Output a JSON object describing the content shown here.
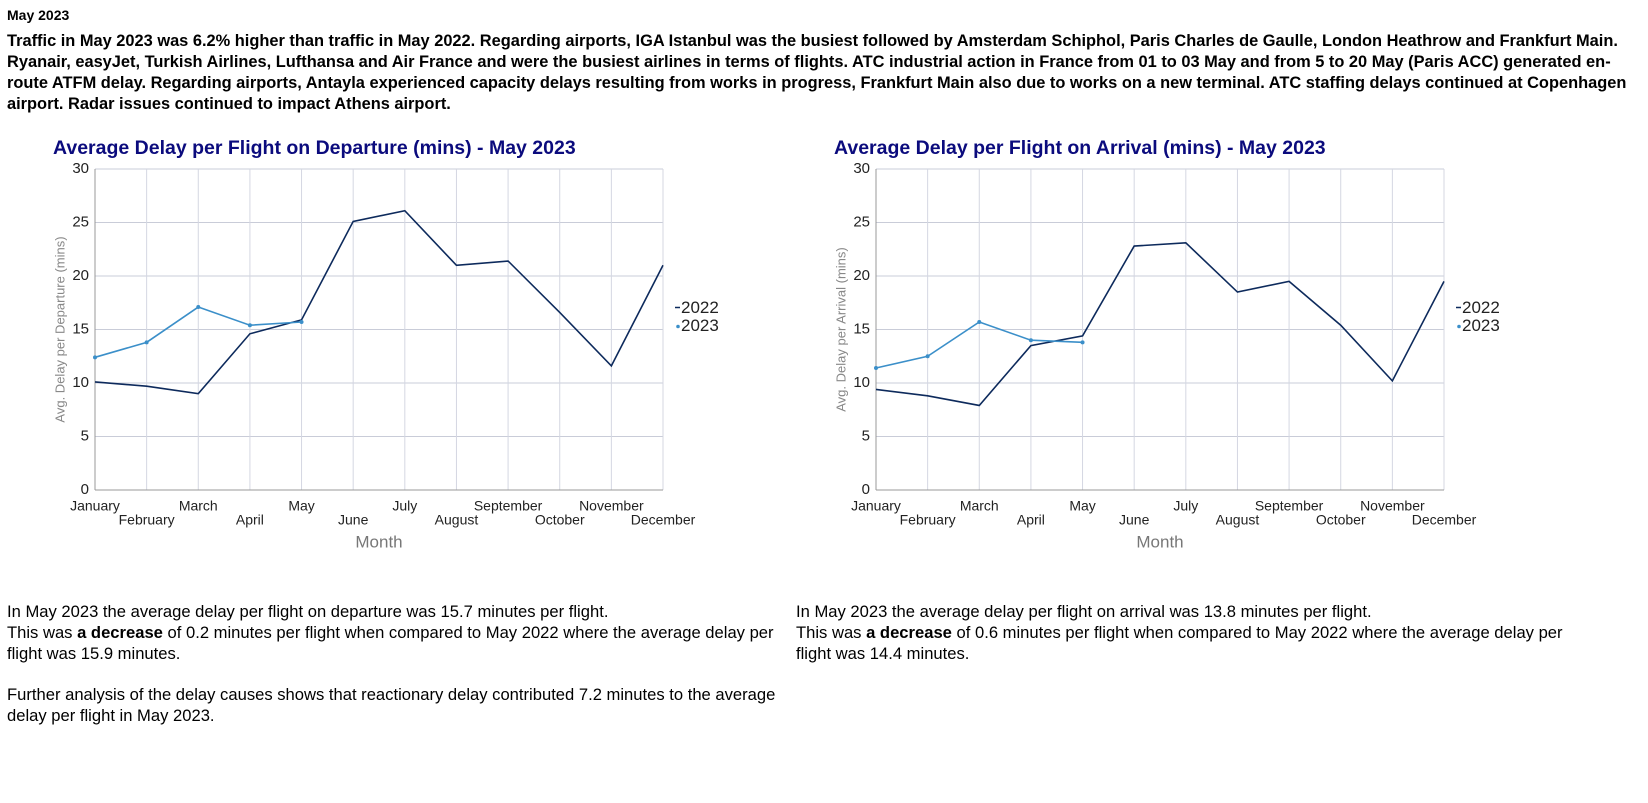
{
  "header": {
    "title": "May 2023",
    "summary": "Traffic in May 2023 was 6.2% higher than traffic in May 2022. Regarding airports, IGA Istanbul was the busiest followed by Amsterdam Schiphol, Paris Charles de Gaulle, London Heathrow and Frankfurt Main. Ryanair, easyJet, Turkish Airlines, Lufthansa and Air France and were the busiest airlines in terms of flights. ATC industrial action in France from 01 to 03 May and from 5 to 20 May (Paris ACC) generated en-route ATFM delay. Regarding airports, Antayla experienced capacity delays resulting from works in progress, Frankfurt Main also due to works on a new terminal. ATC staffing delays continued at Copenhagen airport. Radar issues continued to impact Athens airport."
  },
  "chart_data": [
    {
      "type": "line",
      "title": "Average Delay per Flight on Departure (mins) - May 2023",
      "x_label": "Month",
      "y_label": "Avg. Delay per Departure (mins)",
      "categories": [
        "January",
        "February",
        "March",
        "April",
        "May",
        "June",
        "July",
        "August",
        "September",
        "October",
        "November",
        "December"
      ],
      "series": [
        {
          "name": "2022",
          "color": "#0d2a5c",
          "values": [
            10.1,
            9.7,
            9.0,
            14.6,
            15.9,
            25.1,
            26.1,
            21.0,
            21.4,
            16.6,
            11.6,
            21.0
          ]
        },
        {
          "name": "2023",
          "color": "#3b8fc9",
          "values": [
            12.4,
            13.8,
            17.1,
            15.4,
            15.7,
            null,
            null,
            null,
            null,
            null,
            null,
            null
          ]
        }
      ],
      "ylim": [
        0,
        30
      ],
      "yticks": [
        0,
        5,
        10,
        15,
        20,
        25,
        30
      ],
      "grid": true,
      "legend": "right"
    },
    {
      "type": "line",
      "title": "Average Delay per Flight on Arrival (mins) - May 2023",
      "x_label": "Month",
      "y_label": "Avg. Delay per Arrival (mins)",
      "categories": [
        "January",
        "February",
        "March",
        "April",
        "May",
        "June",
        "July",
        "August",
        "September",
        "October",
        "November",
        "December"
      ],
      "series": [
        {
          "name": "2022",
          "color": "#0d2a5c",
          "values": [
            9.4,
            8.8,
            7.9,
            13.5,
            14.4,
            22.8,
            23.1,
            18.5,
            19.5,
            15.4,
            10.2,
            19.5
          ]
        },
        {
          "name": "2023",
          "color": "#3b8fc9",
          "values": [
            11.4,
            12.5,
            15.7,
            14.0,
            13.8,
            null,
            null,
            null,
            null,
            null,
            null,
            null
          ]
        }
      ],
      "ylim": [
        0,
        30
      ],
      "yticks": [
        0,
        5,
        10,
        15,
        20,
        25,
        30
      ],
      "grid": true,
      "legend": "right"
    }
  ],
  "notes": [
    {
      "line1": "In May 2023 the average delay per flight on departure was 15.7 minutes per flight.",
      "line2": [
        "This was",
        "a decrease",
        "of 0.2 minutes per flight when compared to May 2022 where the average delay per flight was 15.9 minutes."
      ],
      "further": "Further analysis of the delay causes shows that reactionary delay contributed 7.2 minutes to the average delay per flight in May 2023."
    },
    {
      "line1": "In May 2023 the average delay per flight on arrival was 13.8 minutes per flight.",
      "line2": [
        "This was",
        "a decrease",
        "of 0.6 minutes per flight when compared to May 2022 where the average delay per flight was 14.4 minutes."
      ]
    }
  ]
}
